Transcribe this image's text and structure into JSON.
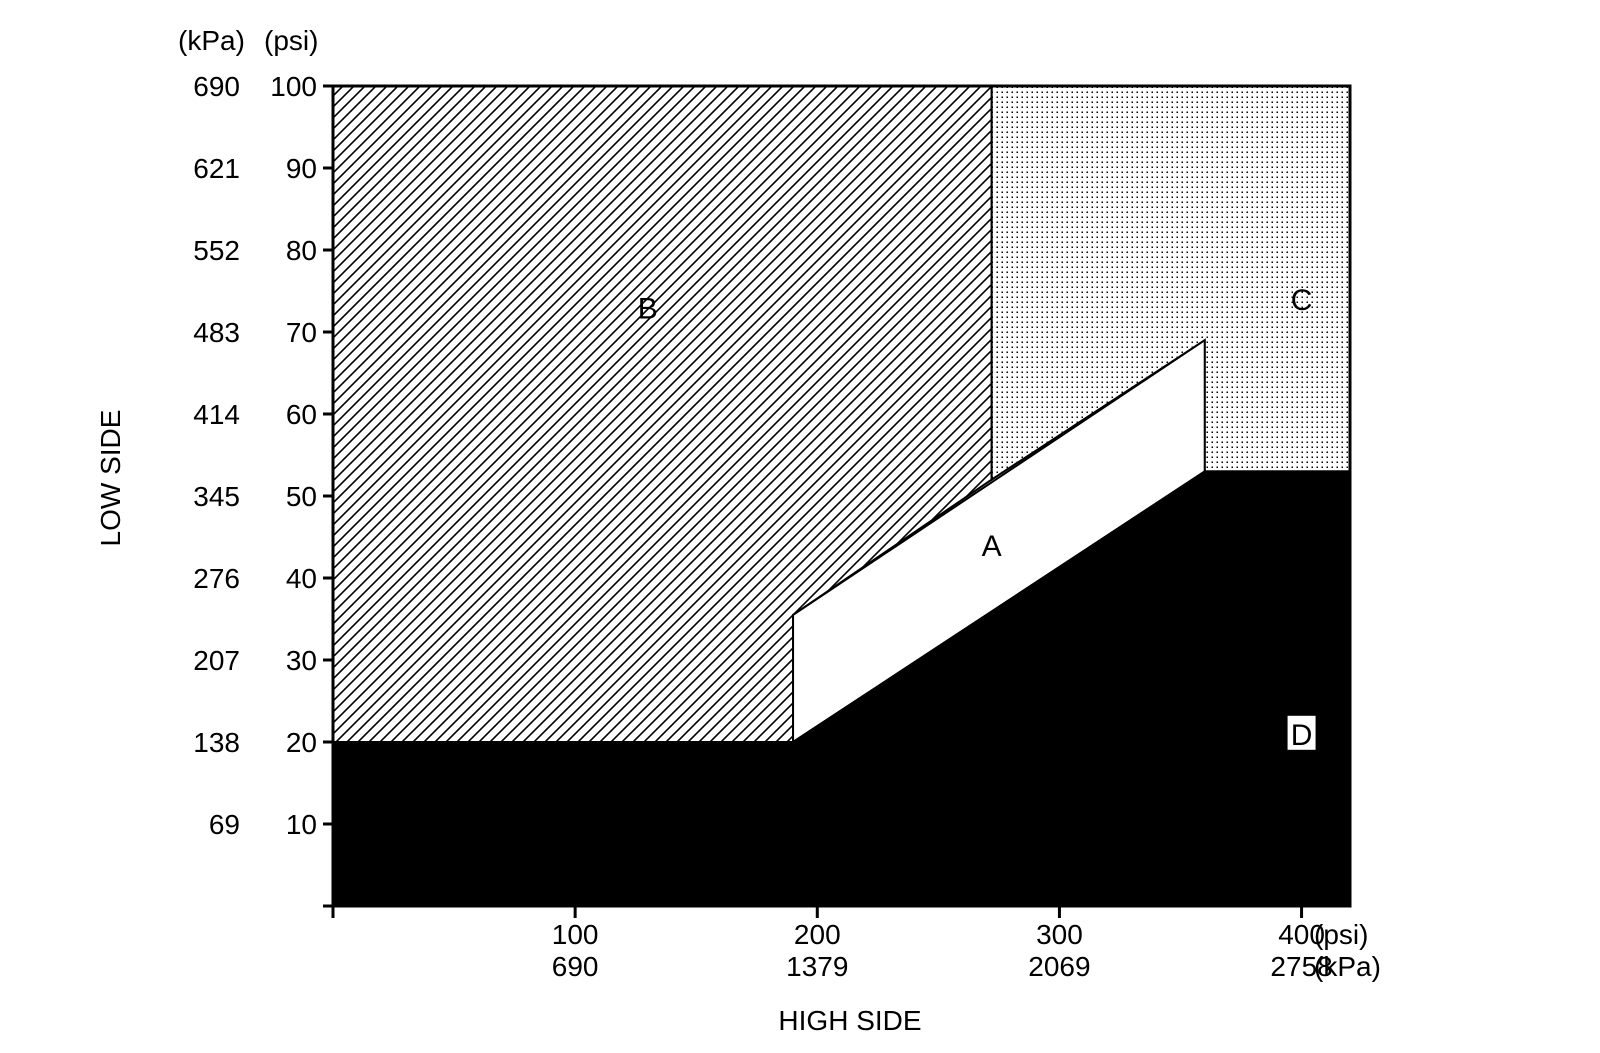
{
  "chart_data": {
    "type": "area",
    "title": "",
    "xlabel": "HIGH SIDE",
    "ylabel": "LOW SIDE",
    "x_units": {
      "primary": "(psi)",
      "secondary": "(kPa)"
    },
    "y_units": {
      "primary": "(psi)",
      "secondary": "(kPa)"
    },
    "xlim": [
      0,
      420
    ],
    "ylim": [
      0,
      100
    ],
    "x_ticks": [
      {
        "value": 0,
        "psi": "",
        "kpa": ""
      },
      {
        "value": 100,
        "psi": "100",
        "kpa": "690"
      },
      {
        "value": 200,
        "psi": "200",
        "kpa": "1379"
      },
      {
        "value": 300,
        "psi": "300",
        "kpa": "2069"
      },
      {
        "value": 400,
        "psi": "400",
        "kpa": "2758"
      }
    ],
    "y_ticks": [
      {
        "value": 0,
        "psi": "",
        "kpa": ""
      },
      {
        "value": 10,
        "psi": "10",
        "kpa": "69"
      },
      {
        "value": 20,
        "psi": "20",
        "kpa": "138"
      },
      {
        "value": 30,
        "psi": "30",
        "kpa": "207"
      },
      {
        "value": 40,
        "psi": "40",
        "kpa": "276"
      },
      {
        "value": 50,
        "psi": "50",
        "kpa": "345"
      },
      {
        "value": 60,
        "psi": "60",
        "kpa": "414"
      },
      {
        "value": 70,
        "psi": "70",
        "kpa": "483"
      },
      {
        "value": 80,
        "psi": "80",
        "kpa": "552"
      },
      {
        "value": 90,
        "psi": "90",
        "kpa": "621"
      },
      {
        "value": 100,
        "psi": "100",
        "kpa": "690"
      }
    ],
    "regions": [
      {
        "label": "B",
        "fill": "hatch",
        "label_at": [
          130,
          73
        ],
        "points": [
          [
            0,
            20
          ],
          [
            190,
            20
          ],
          [
            190,
            35.5
          ],
          [
            272,
            52
          ],
          [
            272,
            100
          ],
          [
            0,
            100
          ]
        ]
      },
      {
        "label": "C",
        "fill": "dots",
        "label_at": [
          400,
          74
        ],
        "points": [
          [
            272,
            100
          ],
          [
            420,
            100
          ],
          [
            420,
            53
          ],
          [
            360,
            53
          ],
          [
            360,
            69
          ],
          [
            272,
            52
          ]
        ]
      },
      {
        "label": "A",
        "fill": "white",
        "label_at": [
          272,
          44
        ],
        "points": [
          [
            190,
            20
          ],
          [
            360,
            53
          ],
          [
            360,
            69
          ],
          [
            190,
            35.5
          ]
        ]
      },
      {
        "label": "D",
        "fill": "black",
        "label_at": [
          400,
          21
        ],
        "points": [
          [
            0,
            0
          ],
          [
            420,
            0
          ],
          [
            420,
            53
          ],
          [
            360,
            53
          ],
          [
            190,
            20
          ],
          [
            0,
            20
          ]
        ]
      }
    ],
    "colors": {
      "ink": "#000000",
      "paper": "#ffffff"
    }
  }
}
